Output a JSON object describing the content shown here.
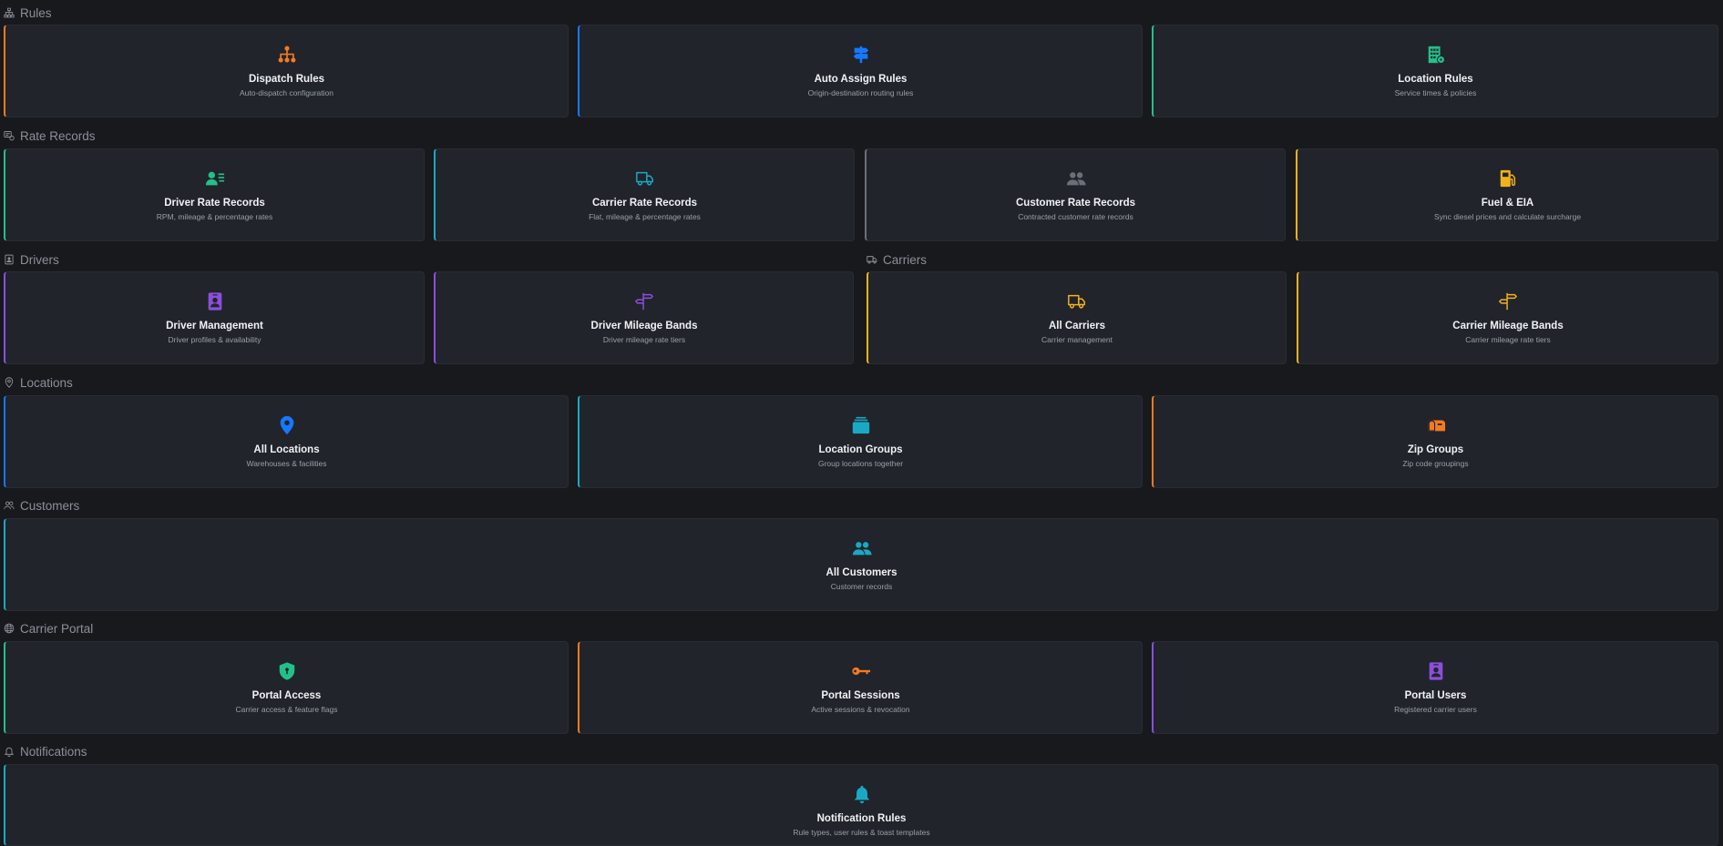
{
  "colors": {
    "orange": "#f47a20",
    "blue": "#1479ff",
    "green": "#22c08a",
    "teal": "#1aa9c4",
    "gray": "#6b6f77",
    "yellow": "#f2b21c",
    "purple": "#8b4fdc"
  },
  "sections": {
    "rules": {
      "title": "Rules",
      "icon": "sitemap-icon",
      "cards": [
        {
          "title": "Dispatch Rules",
          "subtitle": "Auto-dispatch configuration",
          "icon": "hierarchy-icon",
          "color": "#f47a20"
        },
        {
          "title": "Auto Assign Rules",
          "subtitle": "Origin-destination routing rules",
          "icon": "signpost-icon",
          "color": "#1479ff"
        },
        {
          "title": "Location Rules",
          "subtitle": "Service times & policies",
          "icon": "building-gear-icon",
          "color": "#22c08a"
        }
      ]
    },
    "rate_records": {
      "title": "Rate Records",
      "icon": "rate-card-icon",
      "cards": [
        {
          "title": "Driver Rate Records",
          "subtitle": "RPM, mileage & percentage rates",
          "icon": "person-lines-icon",
          "color": "#22c08a"
        },
        {
          "title": "Carrier Rate Records",
          "subtitle": "Flat, mileage & percentage rates",
          "icon": "truck-icon",
          "color": "#1aa9c4"
        },
        {
          "title": "Customer Rate Records",
          "subtitle": "Contracted customer rate records",
          "icon": "people-icon",
          "color": "#6b6f77"
        },
        {
          "title": "Fuel & EIA",
          "subtitle": "Sync diesel prices and calculate surcharge",
          "icon": "fuel-pump-icon",
          "color": "#f2b21c"
        }
      ]
    },
    "drivers": {
      "title": "Drivers",
      "icon": "driver-badge-icon",
      "cards": [
        {
          "title": "Driver Management",
          "subtitle": "Driver profiles & availability",
          "icon": "person-badge-icon",
          "color": "#8b4fdc"
        },
        {
          "title": "Driver Mileage Bands",
          "subtitle": "Driver mileage rate tiers",
          "icon": "signpost-split-icon",
          "color": "#8b4fdc"
        }
      ]
    },
    "carriers": {
      "title": "Carriers",
      "icon": "truck-icon",
      "cards": [
        {
          "title": "All Carriers",
          "subtitle": "Carrier management",
          "icon": "truck-icon",
          "color": "#f2b21c"
        },
        {
          "title": "Carrier Mileage Bands",
          "subtitle": "Carrier mileage rate tiers",
          "icon": "signpost-split-icon",
          "color": "#f2b21c"
        }
      ]
    },
    "locations": {
      "title": "Locations",
      "icon": "map-pin-icon",
      "cards": [
        {
          "title": "All Locations",
          "subtitle": "Warehouses & facilities",
          "icon": "map-pin-icon",
          "color": "#1479ff"
        },
        {
          "title": "Location Groups",
          "subtitle": "Group locations together",
          "icon": "collection-icon",
          "color": "#1aa9c4"
        },
        {
          "title": "Zip Groups",
          "subtitle": "Zip code groupings",
          "icon": "mailbox-icon",
          "color": "#f47a20"
        }
      ]
    },
    "customers": {
      "title": "Customers",
      "icon": "people-icon",
      "cards": [
        {
          "title": "All Customers",
          "subtitle": "Customer records",
          "icon": "people-icon",
          "color": "#1aa9c4"
        }
      ]
    },
    "carrier_portal": {
      "title": "Carrier Portal",
      "icon": "globe-icon",
      "cards": [
        {
          "title": "Portal Access",
          "subtitle": "Carrier access & feature flags",
          "icon": "shield-lock-icon",
          "color": "#22c08a"
        },
        {
          "title": "Portal Sessions",
          "subtitle": "Active sessions & revocation",
          "icon": "key-icon",
          "color": "#f47a20"
        },
        {
          "title": "Portal Users",
          "subtitle": "Registered carrier users",
          "icon": "person-badge-icon",
          "color": "#8b4fdc"
        }
      ]
    },
    "notifications": {
      "title": "Notifications",
      "icon": "bell-icon",
      "cards": [
        {
          "title": "Notification Rules",
          "subtitle": "Rule types, user rules & toast templates",
          "icon": "bell-icon",
          "color": "#1aa9c4"
        }
      ]
    }
  }
}
